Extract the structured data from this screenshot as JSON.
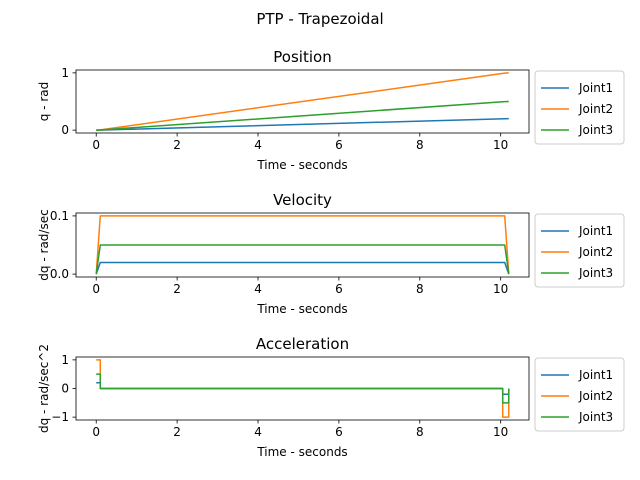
{
  "figure": {
    "title": "PTP - Trapezoidal"
  },
  "chart_data": [
    {
      "type": "line",
      "title": "Position",
      "xlabel": "Time - seconds",
      "ylabel": "q - rad",
      "xlim": [
        -0.5,
        10.7
      ],
      "ylim": [
        -0.05,
        1.05
      ],
      "xticks": [
        0,
        2,
        4,
        6,
        8,
        10
      ],
      "yticks": [
        0,
        1
      ],
      "legend": "outside-right",
      "series": [
        {
          "name": "Joint1",
          "color": "#1f77b4",
          "x": [
            0,
            0.1,
            10.1,
            10.2
          ],
          "y": [
            0,
            0.001,
            0.199,
            0.2
          ]
        },
        {
          "name": "Joint2",
          "color": "#ff7f0e",
          "x": [
            0,
            0.1,
            10.1,
            10.2
          ],
          "y": [
            0,
            0.005,
            0.995,
            1.0
          ]
        },
        {
          "name": "Joint3",
          "color": "#2ca02c",
          "x": [
            0,
            0.1,
            10.1,
            10.2
          ],
          "y": [
            0,
            0.0025,
            0.4975,
            0.5
          ]
        }
      ]
    },
    {
      "type": "line",
      "title": "Velocity",
      "xlabel": "Time - seconds",
      "ylabel": "dq - rad/sec",
      "xlim": [
        -0.5,
        10.7
      ],
      "ylim": [
        -0.005,
        0.105
      ],
      "xticks": [
        0,
        2,
        4,
        6,
        8,
        10
      ],
      "yticks": [
        0.0,
        0.1
      ],
      "legend": "outside-right",
      "series": [
        {
          "name": "Joint1",
          "color": "#1f77b4",
          "x": [
            0,
            0.1,
            10.1,
            10.2
          ],
          "y": [
            0,
            0.02,
            0.02,
            0
          ]
        },
        {
          "name": "Joint2",
          "color": "#ff7f0e",
          "x": [
            0,
            0.1,
            10.1,
            10.2
          ],
          "y": [
            0,
            0.1,
            0.1,
            0
          ]
        },
        {
          "name": "Joint3",
          "color": "#2ca02c",
          "x": [
            0,
            0.1,
            10.1,
            10.2
          ],
          "y": [
            0,
            0.05,
            0.05,
            0
          ]
        }
      ]
    },
    {
      "type": "line",
      "title": "Acceleration",
      "xlabel": "Time - seconds",
      "ylabel": "dq - rad/sec^2",
      "xlim": [
        -0.5,
        10.7
      ],
      "ylim": [
        -1.1,
        1.1
      ],
      "xticks": [
        0,
        2,
        4,
        6,
        8,
        10
      ],
      "yticks": [
        -1,
        0,
        1
      ],
      "legend": "outside-right",
      "series": [
        {
          "name": "Joint1",
          "color": "#1f77b4",
          "x": [
            0,
            0.1,
            0.1,
            10.05,
            10.05,
            10.2,
            10.2
          ],
          "y": [
            0.2,
            0.2,
            0,
            0,
            -0.2,
            -0.2,
            0
          ]
        },
        {
          "name": "Joint2",
          "color": "#ff7f0e",
          "x": [
            0,
            0.1,
            0.1,
            10.05,
            10.05,
            10.2,
            10.2
          ],
          "y": [
            1,
            1,
            0,
            0,
            -1,
            -1,
            0
          ]
        },
        {
          "name": "Joint3",
          "color": "#2ca02c",
          "x": [
            0,
            0.1,
            0.1,
            10.05,
            10.05,
            10.2,
            10.2
          ],
          "y": [
            0.5,
            0.5,
            0,
            0,
            -0.5,
            -0.5,
            0
          ]
        }
      ]
    }
  ]
}
